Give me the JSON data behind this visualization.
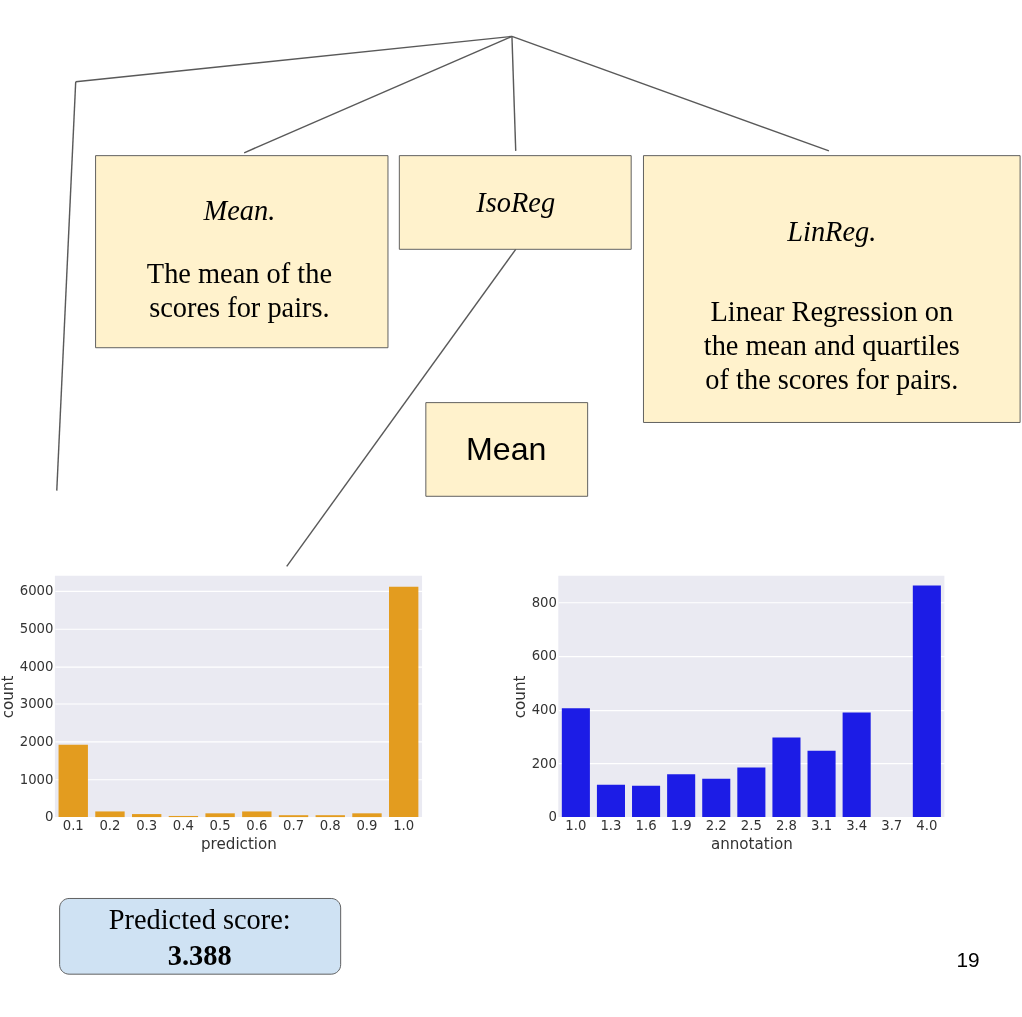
{
  "chart_data": [
    {
      "type": "other",
      "annotations": [
        "Mean.",
        "The mean of the\nscores for pairs.",
        "IsoReg",
        "LinReg.",
        "Linear Regression on\nthe mean and quartiles\nof the scores for pairs.",
        "Mean"
      ]
    },
    {
      "type": "bar",
      "xlabel": "prediction",
      "ylabel": "count",
      "categories": [
        "0.1",
        "0.2",
        "0.3",
        "0.4",
        "0.5",
        "0.6",
        "0.7",
        "0.8",
        "0.9",
        "1.0"
      ],
      "values": [
        1920,
        150,
        80,
        30,
        100,
        150,
        50,
        50,
        100,
        6110
      ],
      "color": "#e39c1f",
      "ylim": [
        0,
        6400
      ],
      "yticks": [
        0,
        1000,
        2000,
        3000,
        4000,
        5000,
        6000
      ],
      "grid": "y"
    },
    {
      "type": "bar",
      "xlabel": "annotation",
      "ylabel": "count",
      "categories": [
        "1.0",
        "1.3",
        "1.6",
        "1.9",
        "2.2",
        "2.5",
        "2.8",
        "3.1",
        "3.4",
        "3.7",
        "4.0"
      ],
      "values": [
        406,
        121,
        117,
        160,
        143,
        185,
        297,
        247,
        390,
        0,
        864
      ],
      "color": "#1c1ce6",
      "ylim": [
        0,
        900
      ],
      "yticks": [
        0,
        200,
        400,
        600,
        800
      ],
      "grid": "y"
    },
    {
      "type": "other",
      "annotations": [
        "Predicted score:",
        "3.388",
        "19"
      ]
    }
  ]
}
